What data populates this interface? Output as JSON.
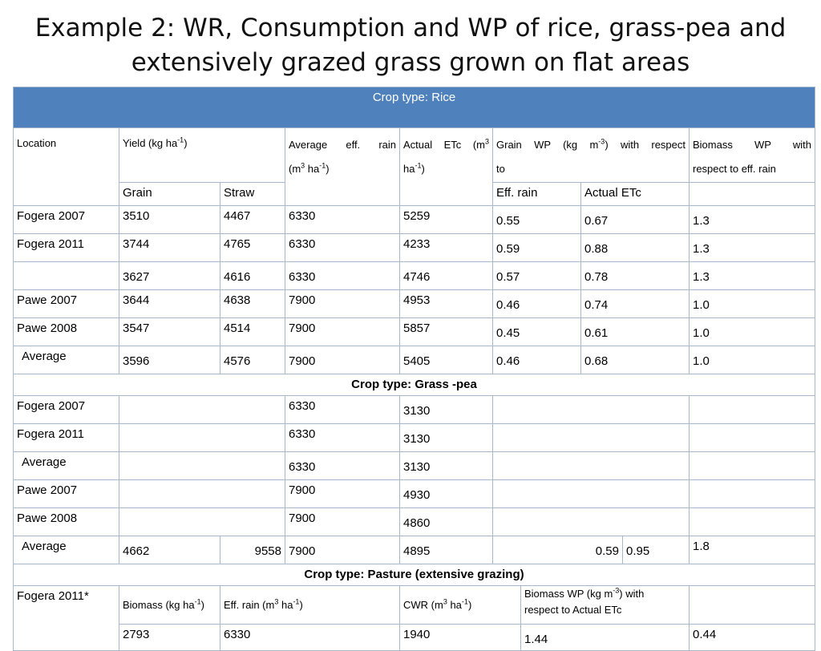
{
  "title": {
    "line1": "Example 2: WR, Consumption and WP of rice, grass-pea and",
    "line2": "extensively  grazed grass grown on flat areas"
  },
  "rice": {
    "header": "Crop type: Rice",
    "col_location": "Location",
    "col_yield": "Yield (kg ha",
    "col_yield_sup": "-1",
    "col_yield_end": ")",
    "col_rain_a": "Average eff. rain",
    "col_rain_b": "(m",
    "col_rain_sup1": "3",
    "col_rain_c": " ha",
    "col_rain_sup2": "-1",
    "col_rain_d": ")",
    "col_etc_a": "Actual ETc (m",
    "col_etc_sup1": "3",
    "col_etc_b": "ha",
    "col_etc_sup2": "-1",
    "col_etc_c": ")",
    "col_gwp_a": "Grain WP (kg m",
    "col_gwp_sup": "-3",
    "col_gwp_b": ") with respect",
    "col_gwp_c": "to",
    "col_bwp_a": "Biomass WP with",
    "col_bwp_b": "respect to eff. rain",
    "sub_grain": "Grain",
    "sub_straw": "Straw",
    "sub_effrain": "Eff. rain",
    "sub_actualetc": "Actual ETc",
    "rows": [
      {
        "location": "Fogera 2007",
        "grain": "3510",
        "straw": "4467",
        "rain": "6330",
        "etc": "5259",
        "wp_rain": "0.55",
        "wp_etc": "0.67",
        "biomass": "1.3"
      },
      {
        "location": "Fogera 2011",
        "grain": "3744",
        "straw": "4765",
        "rain": "6330",
        "etc": "4233",
        "wp_rain": "0.59",
        "wp_etc": "0.88",
        "biomass": "1.3"
      },
      {
        "location": "",
        "grain": "3627",
        "straw": "4616",
        "rain": "6330",
        "etc": "4746",
        "wp_rain": "0.57",
        "wp_etc": "0.78",
        "biomass": "1.3"
      },
      {
        "location": "Pawe 2007",
        "grain": "3644",
        "straw": "4638",
        "rain": "7900",
        "etc": "4953",
        "wp_rain": "0.46",
        "wp_etc": "0.74",
        "biomass": "1.0"
      },
      {
        "location": "Pawe 2008",
        "grain": "3547",
        "straw": "4514",
        "rain": "7900",
        "etc": "5857",
        "wp_rain": "0.45",
        "wp_etc": "0.61",
        "biomass": "1.0"
      },
      {
        "location": "Average",
        "grain": "3596",
        "straw": "4576",
        "rain": "7900",
        "etc": "5405",
        "wp_rain": "0.46",
        "wp_etc": "0.68",
        "biomass": "1.0"
      }
    ]
  },
  "grasspea": {
    "header": "Crop type: Grass -pea",
    "rows": [
      {
        "location": "Fogera 2007",
        "rain": "6330",
        "etc": "3130"
      },
      {
        "location": "Fogera 2011",
        "rain": "6330",
        "etc": "3130"
      },
      {
        "location": "Average",
        "rain": "6330",
        "etc": "3130"
      },
      {
        "location": "Pawe 2007",
        "rain": "7900",
        "etc": "4930"
      },
      {
        "location": "Pawe 2008",
        "rain": "7900",
        "etc": "4860"
      }
    ],
    "avg": {
      "location": "Average",
      "yield1": "4662",
      "yield2": "9558",
      "rain": "7900",
      "etc": "4895",
      "wp_rain": "0.59",
      "wp_etc": "0.95",
      "biomass": "1.8"
    }
  },
  "pasture": {
    "header": "Crop type: Pasture  (extensive grazing)",
    "location": "Fogera 2011*",
    "h_biomass": "Biomass (kg ha",
    "h_biomass_sup": "-1",
    "h_biomass_end": ")",
    "h_rain_a": "Eff. rain  (m",
    "h_rain_sup1": "3",
    "h_rain_b": " ha",
    "h_rain_sup2": "-1",
    "h_rain_c": ")",
    "h_cwr_a": "CWR (m",
    "h_cwr_sup1": "3",
    "h_cwr_b": " ha",
    "h_cwr_sup2": "-1",
    "h_cwr_c": ")",
    "h_bwp_a": "Biomass WP (kg m",
    "h_bwp_sup": "-3",
    "h_bwp_b": ") with",
    "h_bwp_c": "respect to Actual  ETc",
    "v_biomass": "2793",
    "v_rain": "6330",
    "v_cwr": "1940",
    "v_bwp": "1.44",
    "v_last": "0.44"
  }
}
